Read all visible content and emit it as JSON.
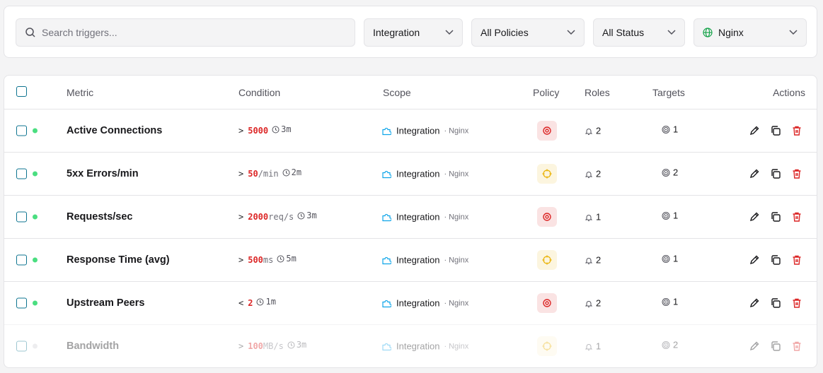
{
  "filters": {
    "search_placeholder": "Search triggers...",
    "integration": "Integration",
    "policy": "All Policies",
    "status": "All Status",
    "source": "Nginx"
  },
  "table": {
    "headers": [
      "Metric",
      "Condition",
      "Scope",
      "Policy",
      "Roles",
      "Targets",
      "Actions"
    ],
    "rows": [
      {
        "metric": "Active Connections",
        "operator": ">",
        "threshold": "5000",
        "duration": "3m",
        "scope": "Integration",
        "source": "Nginx",
        "policy_icon": "target",
        "policy_color": "#dc2626",
        "roles": 2,
        "targets": 1,
        "enabled": true
      },
      {
        "metric": "5xx Errors/min",
        "operator": ">",
        "threshold": "50",
        "unit": "/min",
        "duration": "2m",
        "scope": "Integration",
        "source": "Nginx",
        "policy_icon": "crosshair",
        "policy_color": "#eab308",
        "roles": 2,
        "targets": 2,
        "enabled": true
      },
      {
        "metric": "Requests/sec",
        "operator": ">",
        "threshold": "2000",
        "unit": "req/s",
        "duration": "3m",
        "scope": "Integration",
        "source": "Nginx",
        "policy_icon": "target",
        "policy_color": "#dc2626",
        "roles": 1,
        "targets": 1,
        "enabled": true
      },
      {
        "metric": "Response Time (avg)",
        "operator": ">",
        "threshold": "500",
        "unit": "ms",
        "duration": "5m",
        "scope": "Integration",
        "source": "Nginx",
        "policy_icon": "crosshair",
        "policy_color": "#eab308",
        "roles": 2,
        "targets": 1,
        "enabled": true
      },
      {
        "metric": "Upstream Peers",
        "operator": "<",
        "threshold": "2",
        "duration": "1m",
        "scope": "Integration",
        "source": "Nginx",
        "policy_icon": "target",
        "policy_color": "#dc2626",
        "roles": 2,
        "targets": 1,
        "enabled": true
      },
      {
        "metric": "Bandwidth",
        "operator": ">",
        "threshold": "100",
        "unit": "MB/s",
        "duration": "3m",
        "scope": "Integration",
        "source": "Nginx",
        "policy_icon": "crosshair",
        "policy_color": "#eab308",
        "roles": 1,
        "targets": 2,
        "enabled": false
      }
    ]
  }
}
